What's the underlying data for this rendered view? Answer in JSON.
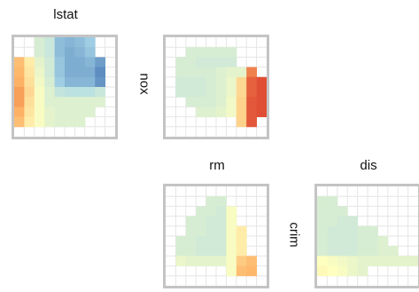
{
  "chart_data": {
    "type": "heatmap",
    "col_labels": [
      "lstat",
      "nox",
      "rm",
      "dis"
    ],
    "row_labels": [
      "nox",
      "crim"
    ],
    "color_scale": {
      "low": "#d73027",
      "mid_low": "#fdae61",
      "mid": "#ffffbf",
      "mid_high": "#abd9e9",
      "high": "#4575b4"
    },
    "grid": true,
    "panels": [
      {
        "id": "lstat-nox",
        "col_label": "lstat",
        "row_label": "",
        "rows": 10,
        "cols": 10,
        "cells": [
          [
            null,
            null,
            0.62,
            0.66,
            0.82,
            0.84,
            0.82,
            0.78,
            null,
            null
          ],
          [
            null,
            null,
            0.62,
            0.66,
            0.82,
            0.86,
            0.84,
            0.8,
            null,
            null
          ],
          [
            0.3,
            0.44,
            0.58,
            0.64,
            0.8,
            0.86,
            0.86,
            0.84,
            0.9,
            null
          ],
          [
            0.28,
            0.42,
            0.56,
            0.64,
            0.8,
            0.86,
            0.86,
            0.86,
            0.94,
            null
          ],
          [
            0.26,
            0.4,
            0.54,
            0.62,
            0.78,
            0.84,
            0.84,
            0.84,
            0.92,
            null
          ],
          [
            0.22,
            0.38,
            0.52,
            0.6,
            0.68,
            0.7,
            0.7,
            0.7,
            0.66,
            null
          ],
          [
            0.22,
            0.4,
            0.52,
            0.6,
            0.6,
            0.6,
            0.6,
            0.6,
            0.6,
            null
          ],
          [
            0.26,
            0.42,
            0.52,
            0.58,
            0.6,
            0.6,
            0.6,
            0.6,
            null,
            null
          ],
          [
            0.3,
            0.44,
            0.52,
            0.58,
            0.6,
            0.6,
            0.6,
            null,
            null,
            null
          ],
          [
            null,
            null,
            null,
            null,
            null,
            null,
            null,
            null,
            null,
            null
          ]
        ]
      },
      {
        "id": "nox-nox",
        "col_label": "",
        "row_label": "nox",
        "rows": 10,
        "cols": 10,
        "cells": [
          [
            null,
            null,
            null,
            null,
            null,
            null,
            null,
            null,
            null,
            null
          ],
          [
            null,
            null,
            0.62,
            0.62,
            0.62,
            0.62,
            0.62,
            null,
            null,
            null
          ],
          [
            null,
            0.62,
            0.62,
            0.64,
            0.64,
            0.64,
            0.64,
            null,
            null,
            null
          ],
          [
            null,
            0.62,
            0.62,
            0.62,
            0.62,
            0.6,
            0.58,
            0.58,
            0.16,
            null
          ],
          [
            null,
            0.64,
            0.64,
            0.64,
            0.62,
            0.6,
            0.56,
            0.38,
            0.1,
            0.06
          ],
          [
            null,
            0.64,
            0.64,
            0.64,
            0.62,
            0.6,
            0.56,
            0.38,
            0.1,
            0.06
          ],
          [
            null,
            null,
            0.62,
            0.62,
            0.62,
            0.6,
            0.54,
            0.36,
            0.08,
            0.06
          ],
          [
            null,
            null,
            null,
            0.6,
            0.6,
            0.58,
            0.54,
            0.36,
            0.08,
            0.06
          ],
          [
            null,
            null,
            null,
            null,
            null,
            null,
            null,
            0.36,
            0.08,
            null
          ],
          [
            null,
            null,
            null,
            null,
            null,
            null,
            null,
            null,
            null,
            null
          ]
        ]
      },
      {
        "id": "rm-crim",
        "col_label": "rm",
        "row_label": "",
        "rows": 10,
        "cols": 10,
        "cells": [
          [
            null,
            null,
            null,
            null,
            null,
            null,
            null,
            null,
            null,
            null
          ],
          [
            null,
            null,
            null,
            null,
            0.62,
            0.62,
            null,
            null,
            null,
            null
          ],
          [
            null,
            null,
            null,
            0.62,
            0.62,
            0.64,
            0.52,
            null,
            null,
            null
          ],
          [
            null,
            null,
            0.62,
            0.62,
            0.64,
            0.64,
            0.52,
            null,
            null,
            null
          ],
          [
            null,
            null,
            0.62,
            0.62,
            0.64,
            0.64,
            0.52,
            0.44,
            null,
            null
          ],
          [
            null,
            0.62,
            0.62,
            0.64,
            0.64,
            0.64,
            0.52,
            0.44,
            null,
            null
          ],
          [
            null,
            0.62,
            0.62,
            0.64,
            0.64,
            0.64,
            0.52,
            0.44,
            null,
            null
          ],
          [
            null,
            0.56,
            0.58,
            0.58,
            0.58,
            0.58,
            0.52,
            0.34,
            0.3,
            null
          ],
          [
            null,
            null,
            null,
            null,
            null,
            null,
            0.52,
            0.3,
            0.28,
            null
          ],
          [
            null,
            null,
            null,
            null,
            null,
            null,
            null,
            null,
            null,
            null
          ]
        ]
      },
      {
        "id": "dis-crim",
        "col_label": "dis",
        "row_label": "crim",
        "rows": 10,
        "cols": 10,
        "cells": [
          [
            null,
            null,
            null,
            null,
            null,
            null,
            null,
            null,
            null,
            null
          ],
          [
            0.62,
            0.62,
            null,
            null,
            null,
            null,
            null,
            null,
            null,
            null
          ],
          [
            0.62,
            0.62,
            0.62,
            null,
            null,
            null,
            null,
            null,
            null,
            null
          ],
          [
            0.62,
            0.62,
            0.64,
            0.64,
            null,
            null,
            null,
            null,
            null,
            null
          ],
          [
            0.62,
            0.64,
            0.64,
            0.64,
            0.62,
            0.62,
            null,
            null,
            null,
            null
          ],
          [
            0.62,
            0.64,
            0.64,
            0.64,
            0.62,
            0.62,
            0.6,
            null,
            null,
            null
          ],
          [
            0.62,
            0.64,
            0.64,
            0.64,
            0.62,
            0.62,
            0.6,
            0.6,
            null,
            null
          ],
          [
            0.5,
            0.52,
            0.54,
            0.56,
            0.58,
            0.58,
            0.58,
            0.58,
            0.58,
            0.58
          ],
          [
            0.48,
            0.5,
            0.52,
            0.56,
            0.58,
            null,
            null,
            null,
            null,
            null
          ],
          [
            null,
            null,
            null,
            null,
            null,
            null,
            null,
            null,
            null,
            null
          ]
        ]
      }
    ]
  }
}
